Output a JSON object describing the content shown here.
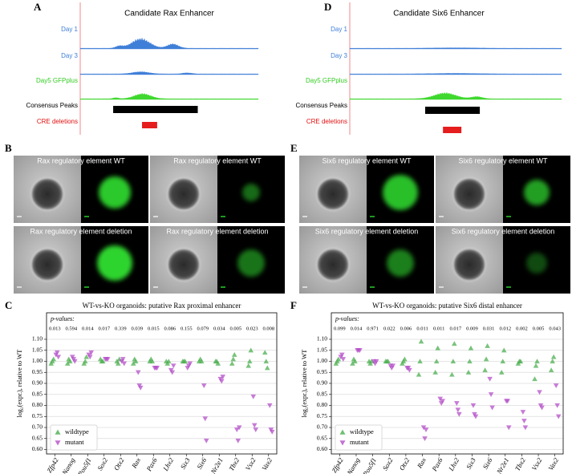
{
  "panel_labels": [
    "A",
    "B",
    "C",
    "D",
    "E",
    "F"
  ],
  "tracks": [
    {
      "title": "Candidate Rax Enhancer",
      "labels": [
        "Day 1",
        "Day 3",
        "Day5 GFPplus",
        "Consensus Peaks",
        "CRE deletions"
      ]
    },
    {
      "title": "Candidate Six6 Enhancer",
      "labels": [
        "Day 1",
        "Day 3",
        "Day5 GFPplus",
        "Consensus Peaks",
        "CRE deletions"
      ]
    }
  ],
  "image_labels": [
    [
      "Rax regulatory element WT",
      "Rax  regulatory element WT",
      "Rax regulatory element deletion",
      "Rax regulatory element deletion"
    ],
    [
      "Six6  regulatory element WT",
      "Six6  regulatory element WT",
      "Six6  regulatory element deletion",
      "Six6 regulatory element deletion"
    ]
  ],
  "chart_data": [
    {
      "type": "scatter",
      "title": "WT-vs-KO organoids: putative Rax proximal enhancer",
      "ylabel": "log₂(expr.), relative to WT",
      "p_label": "p-values:",
      "p_values": [
        0.013,
        0.594,
        0.014,
        0.017,
        0.339,
        0.039,
        0.015,
        0.086,
        0.155,
        0.079,
        0.034,
        0.005,
        0.023,
        0.008
      ],
      "categories": [
        "Zfp42",
        "Nanog",
        "Pou5f1",
        "Sox2",
        "Otx2",
        "Rax",
        "Pax6",
        "Lhx2",
        "Six3",
        "Six6",
        "Nr2e1",
        "Tbx2",
        "Vsx2",
        "Vax2"
      ],
      "series": [
        {
          "name": "wildtype",
          "color": "#4caf50",
          "values": [
            [
              0.99,
              1.0,
              1.01
            ],
            [
              0.99,
              1.01,
              1.0
            ],
            [
              0.99,
              1.0,
              1.02
            ],
            [
              1.01,
              1.0,
              1.0
            ],
            [
              1.0,
              0.99,
              1.01
            ],
            [
              0.99,
              1.01,
              1.0
            ],
            [
              1.0,
              1.01,
              1.0
            ],
            [
              1.0,
              0.99,
              1.0
            ],
            [
              1.0,
              1.0,
              1.0
            ],
            [
              1.0,
              1.01,
              1.0
            ],
            [
              1.0,
              1.0,
              0.99
            ],
            [
              0.99,
              1.01,
              1.03
            ],
            [
              0.98,
              1.0,
              1.05
            ],
            [
              1.04,
              1.0,
              0.97
            ]
          ]
        },
        {
          "name": "mutant",
          "color": "#b44fc8",
          "values": [
            [
              1.03,
              1.04,
              1.02
            ],
            [
              1.02,
              1.01,
              1.0
            ],
            [
              1.03,
              1.02,
              1.04
            ],
            [
              1.01,
              1.01,
              1.01
            ],
            [
              1.0,
              1.01,
              0.99
            ],
            [
              0.95,
              0.89,
              0.88
            ],
            [
              0.97,
              0.97,
              0.97
            ],
            [
              0.96,
              0.95,
              0.98
            ],
            [
              0.97,
              0.98,
              0.99
            ],
            [
              0.89,
              0.74,
              0.64
            ],
            [
              0.92,
              0.91,
              0.93
            ],
            [
              0.69,
              0.64,
              0.7
            ],
            [
              0.84,
              0.71,
              0.69
            ],
            [
              0.8,
              0.69,
              0.68
            ]
          ]
        }
      ],
      "ylim": [
        0.58,
        1.22
      ],
      "yticks": [
        {
          "value": 0.6,
          "label": "0.60"
        },
        0.65,
        {
          "value": 0.7,
          "label": "0.70"
        },
        0.75,
        {
          "value": 0.8,
          "label": "0.80"
        },
        0.85,
        {
          "value": 0.9,
          "label": "0.90"
        },
        0.95,
        {
          "value": 1,
          "label": "1.00"
        },
        1.05,
        {
          "value": 1.1,
          "label": "1.10"
        }
      ],
      "grid": true,
      "legend": "lower left"
    },
    {
      "type": "scatter",
      "title": "WT-vs-KO organoids: putative Six6 distal enhancer",
      "ylabel": "log₂(expr.), relative to WT",
      "p_label": "p-values:",
      "p_values": [
        0.099,
        0.014,
        0.971,
        0.022,
        0.006,
        0.011,
        0.011,
        0.017,
        0.009,
        0.031,
        0.012,
        0.002,
        0.005,
        0.043
      ],
      "categories": [
        "Zfp42",
        "Nanog",
        "Pou5f1",
        "Sox2",
        "Otx2",
        "Rax",
        "Pax6",
        "Lhx2",
        "Six3",
        "Six6",
        "Nr2e1",
        "Tbx2",
        "Vsx2",
        "Vax2"
      ],
      "series": [
        {
          "name": "wildtype",
          "color": "#4caf50",
          "values": [
            [
              0.99,
              1.0,
              1.01
            ],
            [
              0.99,
              1.01,
              1.0
            ],
            [
              1.0,
              0.99,
              1.0
            ],
            [
              1.0,
              1.0,
              1.0
            ],
            [
              0.99,
              1.0,
              1.01
            ],
            [
              0.94,
              1.0,
              1.09
            ],
            [
              0.95,
              1.0,
              1.06
            ],
            [
              0.94,
              1.0,
              1.08
            ],
            [
              0.95,
              1.0,
              1.06
            ],
            [
              0.96,
              1.01,
              1.07
            ],
            [
              0.95,
              1.0,
              1.05
            ],
            [
              0.99,
              1.0,
              1.0
            ],
            [
              0.92,
              0.98,
              1.0
            ],
            [
              0.96,
              1.0,
              1.02
            ]
          ]
        },
        {
          "name": "mutant",
          "color": "#b44fc8",
          "values": [
            [
              1.02,
              1.03,
              1.01
            ],
            [
              1.05,
              1.05,
              1.05
            ],
            [
              1.0,
              0.99,
              1.0
            ],
            [
              0.98,
              0.97,
              0.98
            ],
            [
              0.97,
              0.97,
              0.96
            ],
            [
              0.7,
              0.65,
              0.69
            ],
            [
              0.83,
              0.81,
              0.82
            ],
            [
              0.81,
              0.78,
              0.76
            ],
            [
              0.8,
              0.76,
              0.75
            ],
            [
              0.92,
              0.85,
              0.79
            ],
            [
              0.82,
              0.82,
              0.7
            ],
            [
              0.77,
              0.73,
              0.7
            ],
            [
              0.86,
              0.8,
              0.79
            ],
            [
              0.89,
              0.8,
              0.75
            ]
          ]
        }
      ],
      "ylim": [
        0.58,
        1.22
      ],
      "yticks": [
        {
          "value": 0.6,
          "label": "0.60"
        },
        0.65,
        {
          "value": 0.7,
          "label": "0.70"
        },
        0.75,
        {
          "value": 0.8,
          "label": "0.80"
        },
        0.85,
        {
          "value": 0.9,
          "label": "0.90"
        },
        0.95,
        {
          "value": 1,
          "label": "1.00"
        },
        1.05,
        {
          "value": 1.1,
          "label": "1.10"
        }
      ],
      "grid": true,
      "legend": "lower left"
    }
  ]
}
